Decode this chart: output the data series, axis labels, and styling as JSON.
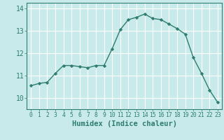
{
  "x": [
    0,
    1,
    2,
    3,
    4,
    5,
    6,
    7,
    8,
    9,
    10,
    11,
    12,
    13,
    14,
    15,
    16,
    17,
    18,
    19,
    20,
    21,
    22,
    23
  ],
  "y": [
    10.55,
    10.65,
    10.7,
    11.1,
    11.45,
    11.45,
    11.4,
    11.35,
    11.45,
    11.45,
    12.2,
    13.05,
    13.5,
    13.6,
    13.75,
    13.55,
    13.5,
    13.3,
    13.1,
    12.85,
    11.8,
    11.1,
    10.35,
    9.8
  ],
  "line_color": "#2e7d6e",
  "marker": "D",
  "marker_size": 2.2,
  "bg_color": "#c8eaea",
  "grid_color": "#ffffff",
  "xlabel": "Humidex (Indice chaleur)",
  "ylim": [
    9.5,
    14.25
  ],
  "xlim": [
    -0.5,
    23.5
  ],
  "yticks": [
    10,
    11,
    12,
    13,
    14
  ],
  "xticks": [
    0,
    1,
    2,
    3,
    4,
    5,
    6,
    7,
    8,
    9,
    10,
    11,
    12,
    13,
    14,
    15,
    16,
    17,
    18,
    19,
    20,
    21,
    22,
    23
  ],
  "tick_color": "#2e7d6e",
  "label_color": "#2e7d6e",
  "grid_major_color": "#ffffff",
  "line_width": 1.0,
  "xlabel_fontsize": 7.5,
  "ytick_fontsize": 7,
  "xtick_fontsize": 5.8
}
